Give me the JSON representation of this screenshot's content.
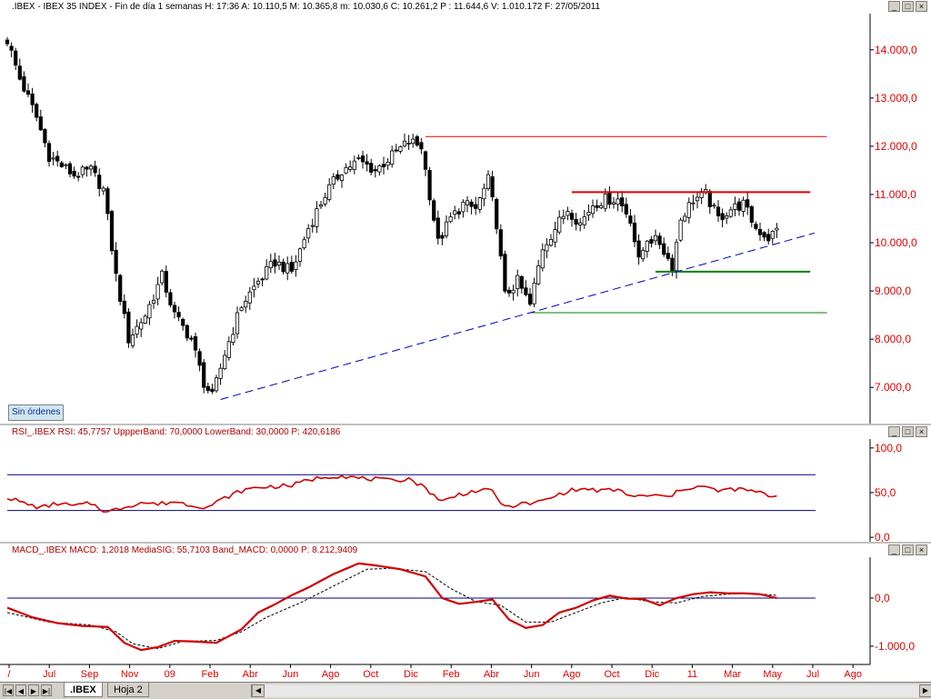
{
  "main_header": ".IBEX - IBEX 35 INDEX - Fin de día 1 semanas  H: 17:36  A: 10.110,5  M: 10.365,8  m: 10.030,6  C: 10.261,2  P : 11.644,6  V: 1.010.172  F: 27/05/2011",
  "rsi_header": "RSI_.IBEX  RSI: 45,7757  UppperBand: 70,0000  LowerBand: 30,0000  P: 420,6186",
  "macd_header": "MACD_.IBEX  MACD: 1,2018  MediaSIG: 55,7103  Band_MACD: 0,0000  P: 8.212,9409",
  "window_buttons": [
    "_",
    "□",
    "×"
  ],
  "badge": "Sin órdenes",
  "tabs": {
    "active": ".IBEX",
    "inactive": "Hoja 2"
  },
  "nav_buttons": [
    "|◀",
    "◀",
    "▶",
    "▶|"
  ],
  "colors": {
    "up_candle": "#ffffff",
    "down_candle": "#000000",
    "resistance": "#e00000",
    "support": "#008000",
    "trendline": "#0000c0",
    "rsi": "#d00000",
    "band": "#000080",
    "signal": "#000000"
  },
  "chart_data": [
    {
      "type": "candlestick",
      "series_name": "IBEX 35 INDEX",
      "period": "weekly",
      "y_ticks": [
        "14.000,0",
        "13.000,0",
        "12.000,0",
        "11.000,0",
        "10.000,0",
        "9.000,0",
        "8.000,0",
        "7.000,0"
      ],
      "y_tick_values": [
        14000,
        13000,
        12000,
        11000,
        10000,
        9000,
        8000,
        7000
      ],
      "ylim": [
        6250,
        14750
      ],
      "x_ticks": [
        "/",
        "Jul",
        "Sep",
        "Nov",
        "09",
        "Feb",
        "Abr",
        "Jun",
        "Ago",
        "Oct",
        "Dic",
        "Feb",
        "Abr",
        "Jun",
        "Ago",
        "Oct",
        "Dic",
        "11",
        "Mar",
        "May",
        "Jul",
        "Ago"
      ],
      "anchors": [
        [
          0,
          14200
        ],
        [
          3,
          13400
        ],
        [
          7,
          12600
        ],
        [
          10,
          11800
        ],
        [
          13,
          11600
        ],
        [
          16,
          11400
        ],
        [
          20,
          11500
        ],
        [
          23,
          11100
        ],
        [
          26,
          9300
        ],
        [
          29,
          8000
        ],
        [
          33,
          8500
        ],
        [
          37,
          9300
        ],
        [
          40,
          8500
        ],
        [
          44,
          8000
        ],
        [
          47,
          7100
        ],
        [
          49,
          6800
        ],
        [
          52,
          7700
        ],
        [
          56,
          8700
        ],
        [
          60,
          9200
        ],
        [
          64,
          9600
        ],
        [
          68,
          9400
        ],
        [
          72,
          10300
        ],
        [
          76,
          11000
        ],
        [
          80,
          11500
        ],
        [
          84,
          11700
        ],
        [
          88,
          11500
        ],
        [
          92,
          11800
        ],
        [
          96,
          12100
        ],
        [
          99,
          12000
        ],
        [
          101,
          11000
        ],
        [
          103,
          10000
        ],
        [
          106,
          10500
        ],
        [
          109,
          10800
        ],
        [
          112,
          10700
        ],
        [
          115,
          11300
        ],
        [
          117,
          10400
        ],
        [
          119,
          8900
        ],
        [
          122,
          9200
        ],
        [
          125,
          8700
        ],
        [
          128,
          9900
        ],
        [
          131,
          10300
        ],
        [
          134,
          10700
        ],
        [
          137,
          10400
        ],
        [
          140,
          10800
        ],
        [
          143,
          10900
        ],
        [
          146,
          10900
        ],
        [
          149,
          10500
        ],
        [
          151,
          9600
        ],
        [
          153,
          10100
        ],
        [
          156,
          10000
        ],
        [
          159,
          9500
        ],
        [
          161,
          10500
        ],
        [
          164,
          10900
        ],
        [
          167,
          11000
        ],
        [
          170,
          10500
        ],
        [
          173,
          10700
        ],
        [
          176,
          10800
        ],
        [
          179,
          10300
        ],
        [
          182,
          10100
        ],
        [
          184,
          10261
        ]
      ],
      "resistance_lines": [
        {
          "y": 12200,
          "x_from": 100,
          "x_to": 196
        },
        {
          "y": 11050,
          "x_from": 135,
          "x_to": 192
        }
      ],
      "support_lines": [
        {
          "y": 9400,
          "x_from": 155,
          "x_to": 192
        },
        {
          "y": 8550,
          "x_from": 125,
          "x_to": 196
        }
      ],
      "trend_line": {
        "from": [
          51,
          6750
        ],
        "to": [
          193,
          10200
        ]
      }
    },
    {
      "type": "line",
      "series_name": "RSI",
      "y_ticks": [
        "100,0",
        "50,0",
        "0,0"
      ],
      "y_tick_values": [
        100,
        50,
        0
      ],
      "ylim": [
        -5,
        110
      ],
      "bands": [
        70,
        30
      ],
      "anchors": [
        [
          0,
          45
        ],
        [
          4,
          38
        ],
        [
          8,
          33
        ],
        [
          12,
          38
        ],
        [
          16,
          35
        ],
        [
          20,
          38
        ],
        [
          24,
          28
        ],
        [
          28,
          34
        ],
        [
          32,
          39
        ],
        [
          36,
          37
        ],
        [
          40,
          40
        ],
        [
          44,
          36
        ],
        [
          48,
          34
        ],
        [
          52,
          44
        ],
        [
          56,
          52
        ],
        [
          60,
          56
        ],
        [
          64,
          57
        ],
        [
          68,
          58
        ],
        [
          72,
          64
        ],
        [
          76,
          68
        ],
        [
          80,
          69
        ],
        [
          84,
          66
        ],
        [
          88,
          65
        ],
        [
          92,
          63
        ],
        [
          96,
          66
        ],
        [
          100,
          55
        ],
        [
          104,
          40
        ],
        [
          108,
          48
        ],
        [
          112,
          52
        ],
        [
          116,
          52
        ],
        [
          119,
          33
        ],
        [
          122,
          37
        ],
        [
          126,
          38
        ],
        [
          130,
          44
        ],
        [
          134,
          52
        ],
        [
          138,
          54
        ],
        [
          142,
          52
        ],
        [
          146,
          53
        ],
        [
          150,
          45
        ],
        [
          154,
          47
        ],
        [
          158,
          45
        ],
        [
          162,
          55
        ],
        [
          166,
          57
        ],
        [
          170,
          52
        ],
        [
          174,
          54
        ],
        [
          178,
          52
        ],
        [
          182,
          47
        ],
        [
          184,
          45.8
        ]
      ]
    },
    {
      "type": "line",
      "series_name": "MACD",
      "y_ticks": [
        "0,0",
        "-1.000,0"
      ],
      "y_tick_values": [
        0,
        -1000
      ],
      "ylim": [
        -1380,
        850
      ],
      "zero_line": 0,
      "anchors": [
        [
          0,
          -200
        ],
        [
          6,
          -400
        ],
        [
          12,
          -520
        ],
        [
          18,
          -580
        ],
        [
          24,
          -600
        ],
        [
          28,
          -930
        ],
        [
          32,
          -1080
        ],
        [
          36,
          -1020
        ],
        [
          40,
          -890
        ],
        [
          44,
          -900
        ],
        [
          50,
          -930
        ],
        [
          56,
          -650
        ],
        [
          60,
          -300
        ],
        [
          64,
          -130
        ],
        [
          68,
          60
        ],
        [
          72,
          220
        ],
        [
          78,
          500
        ],
        [
          84,
          720
        ],
        [
          88,
          680
        ],
        [
          94,
          600
        ],
        [
          100,
          450
        ],
        [
          104,
          0
        ],
        [
          108,
          -120
        ],
        [
          112,
          -80
        ],
        [
          116,
          -30
        ],
        [
          120,
          -450
        ],
        [
          124,
          -620
        ],
        [
          128,
          -560
        ],
        [
          132,
          -300
        ],
        [
          136,
          -200
        ],
        [
          140,
          -50
        ],
        [
          144,
          50
        ],
        [
          148,
          -10
        ],
        [
          152,
          -20
        ],
        [
          156,
          -150
        ],
        [
          160,
          0
        ],
        [
          164,
          80
        ],
        [
          168,
          120
        ],
        [
          172,
          100
        ],
        [
          176,
          100
        ],
        [
          180,
          80
        ],
        [
          184,
          1.2
        ]
      ],
      "signal_anchors": [
        [
          0,
          -300
        ],
        [
          10,
          -500
        ],
        [
          20,
          -560
        ],
        [
          26,
          -700
        ],
        [
          30,
          -950
        ],
        [
          36,
          -1050
        ],
        [
          42,
          -900
        ],
        [
          50,
          -880
        ],
        [
          56,
          -700
        ],
        [
          62,
          -400
        ],
        [
          70,
          -100
        ],
        [
          78,
          250
        ],
        [
          86,
          600
        ],
        [
          92,
          620
        ],
        [
          100,
          550
        ],
        [
          106,
          200
        ],
        [
          112,
          -70
        ],
        [
          118,
          -150
        ],
        [
          124,
          -500
        ],
        [
          130,
          -500
        ],
        [
          136,
          -300
        ],
        [
          142,
          -100
        ],
        [
          148,
          10
        ],
        [
          154,
          -80
        ],
        [
          160,
          -100
        ],
        [
          166,
          30
        ],
        [
          172,
          80
        ],
        [
          178,
          100
        ],
        [
          184,
          55.7
        ]
      ]
    }
  ]
}
